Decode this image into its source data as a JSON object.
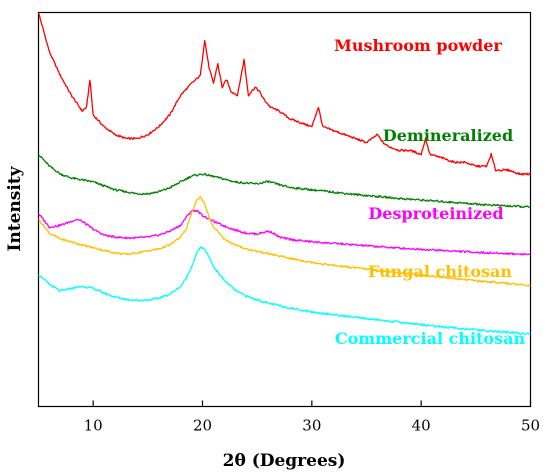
{
  "chart_data": {
    "type": "line",
    "title": "",
    "xlabel": "2θ (Degrees)",
    "ylabel": "Intensity",
    "xlim": [
      5,
      50
    ],
    "xticks": [
      10,
      20,
      30,
      40,
      50
    ],
    "y_ticks_shown": false,
    "grid": false,
    "legend": "labels placed next to each curve",
    "series": [
      {
        "name": "Mushroom powder",
        "color": "#ff0000",
        "points": [
          [
            5,
            1.0
          ],
          [
            6,
            0.9
          ],
          [
            7,
            0.84
          ],
          [
            8,
            0.79
          ],
          [
            9,
            0.75
          ],
          [
            9.4,
            0.76
          ],
          [
            9.7,
            0.83
          ],
          [
            10,
            0.74
          ],
          [
            11,
            0.71
          ],
          [
            12,
            0.69
          ],
          [
            13,
            0.68
          ],
          [
            14,
            0.68
          ],
          [
            15,
            0.69
          ],
          [
            16,
            0.71
          ],
          [
            17,
            0.74
          ],
          [
            18,
            0.79
          ],
          [
            19,
            0.82
          ],
          [
            19.8,
            0.84
          ],
          [
            20.2,
            0.93
          ],
          [
            20.6,
            0.86
          ],
          [
            21,
            0.82
          ],
          [
            21.4,
            0.87
          ],
          [
            21.8,
            0.81
          ],
          [
            22.2,
            0.83
          ],
          [
            22.6,
            0.8
          ],
          [
            23.2,
            0.79
          ],
          [
            23.8,
            0.88
          ],
          [
            24.2,
            0.79
          ],
          [
            24.8,
            0.81
          ],
          [
            25.2,
            0.8
          ],
          [
            25.6,
            0.78
          ],
          [
            26.2,
            0.76
          ],
          [
            27,
            0.75
          ],
          [
            28,
            0.73
          ],
          [
            29,
            0.72
          ],
          [
            30,
            0.71
          ],
          [
            30.6,
            0.76
          ],
          [
            31,
            0.71
          ],
          [
            32,
            0.7
          ],
          [
            33,
            0.69
          ],
          [
            34,
            0.68
          ],
          [
            35,
            0.67
          ],
          [
            36,
            0.69
          ],
          [
            36.5,
            0.67
          ],
          [
            37,
            0.66
          ],
          [
            38,
            0.65
          ],
          [
            39,
            0.65
          ],
          [
            40,
            0.64
          ],
          [
            40.4,
            0.68
          ],
          [
            40.8,
            0.64
          ],
          [
            42,
            0.63
          ],
          [
            43,
            0.62
          ],
          [
            44,
            0.62
          ],
          [
            45,
            0.61
          ],
          [
            46,
            0.61
          ],
          [
            46.4,
            0.64
          ],
          [
            46.8,
            0.6
          ],
          [
            48,
            0.6
          ],
          [
            49,
            0.59
          ],
          [
            50,
            0.59
          ]
        ]
      },
      {
        "name": "Demineralized",
        "color": "#008000",
        "points": [
          [
            5,
            0.64
          ],
          [
            6,
            0.61
          ],
          [
            7,
            0.59
          ],
          [
            8,
            0.58
          ],
          [
            9,
            0.575
          ],
          [
            10,
            0.57
          ],
          [
            11,
            0.56
          ],
          [
            12,
            0.55
          ],
          [
            13,
            0.545
          ],
          [
            14,
            0.54
          ],
          [
            15,
            0.54
          ],
          [
            16,
            0.545
          ],
          [
            17,
            0.555
          ],
          [
            18,
            0.57
          ],
          [
            19,
            0.585
          ],
          [
            20,
            0.59
          ],
          [
            20.5,
            0.587
          ],
          [
            21,
            0.584
          ],
          [
            22,
            0.577
          ],
          [
            23,
            0.57
          ],
          [
            24,
            0.567
          ],
          [
            25,
            0.565
          ],
          [
            26,
            0.571
          ],
          [
            27,
            0.563
          ],
          [
            28,
            0.556
          ],
          [
            30,
            0.55
          ],
          [
            32,
            0.544
          ],
          [
            34,
            0.538
          ],
          [
            36,
            0.533
          ],
          [
            38,
            0.528
          ],
          [
            40,
            0.524
          ],
          [
            42,
            0.52
          ],
          [
            44,
            0.516
          ],
          [
            46,
            0.512
          ],
          [
            48,
            0.509
          ],
          [
            50,
            0.506
          ]
        ]
      },
      {
        "name": "Desproteinized",
        "color": "#ff00ff",
        "points": [
          [
            5,
            0.49
          ],
          [
            6,
            0.455
          ],
          [
            7,
            0.46
          ],
          [
            8,
            0.47
          ],
          [
            8.5,
            0.475
          ],
          [
            9,
            0.47
          ],
          [
            10,
            0.45
          ],
          [
            11,
            0.435
          ],
          [
            12,
            0.43
          ],
          [
            13,
            0.428
          ],
          [
            14,
            0.428
          ],
          [
            15,
            0.43
          ],
          [
            16,
            0.435
          ],
          [
            17,
            0.445
          ],
          [
            18,
            0.46
          ],
          [
            18.5,
            0.48
          ],
          [
            19,
            0.497
          ],
          [
            19.5,
            0.497
          ],
          [
            20,
            0.485
          ],
          [
            21,
            0.47
          ],
          [
            22,
            0.458
          ],
          [
            23,
            0.448
          ],
          [
            24,
            0.44
          ],
          [
            25,
            0.438
          ],
          [
            26,
            0.445
          ],
          [
            26.5,
            0.44
          ],
          [
            27,
            0.43
          ],
          [
            28,
            0.424
          ],
          [
            30,
            0.418
          ],
          [
            32,
            0.414
          ],
          [
            34,
            0.41
          ],
          [
            36,
            0.406
          ],
          [
            38,
            0.402
          ],
          [
            40,
            0.399
          ],
          [
            42,
            0.396
          ],
          [
            44,
            0.393
          ],
          [
            46,
            0.39
          ],
          [
            48,
            0.388
          ],
          [
            50,
            0.386
          ]
        ]
      },
      {
        "name": "Fungal chitosan",
        "color": "#ffc000",
        "points": [
          [
            5,
            0.475
          ],
          [
            6,
            0.44
          ],
          [
            7,
            0.425
          ],
          [
            8,
            0.418
          ],
          [
            9,
            0.41
          ],
          [
            10,
            0.403
          ],
          [
            11,
            0.396
          ],
          [
            12,
            0.39
          ],
          [
            13,
            0.386
          ],
          [
            14,
            0.39
          ],
          [
            15,
            0.395
          ],
          [
            16,
            0.4
          ],
          [
            17,
            0.41
          ],
          [
            18,
            0.43
          ],
          [
            18.5,
            0.45
          ],
          [
            19,
            0.49
          ],
          [
            19.5,
            0.525
          ],
          [
            19.8,
            0.532
          ],
          [
            20.2,
            0.515
          ],
          [
            20.6,
            0.48
          ],
          [
            21,
            0.455
          ],
          [
            22,
            0.425
          ],
          [
            23,
            0.41
          ],
          [
            24,
            0.4
          ],
          [
            26,
            0.388
          ],
          [
            28,
            0.376
          ],
          [
            30,
            0.366
          ],
          [
            32,
            0.358
          ],
          [
            34,
            0.352
          ],
          [
            35,
            0.349
          ],
          [
            36,
            0.345
          ],
          [
            38,
            0.34
          ],
          [
            40,
            0.334
          ],
          [
            42,
            0.328
          ],
          [
            44,
            0.322
          ],
          [
            46,
            0.317
          ],
          [
            48,
            0.312
          ],
          [
            50,
            0.307
          ]
        ]
      },
      {
        "name": "Commercial chitosan",
        "color": "#00ffff",
        "points": [
          [
            5,
            0.335
          ],
          [
            6,
            0.31
          ],
          [
            7,
            0.293
          ],
          [
            8,
            0.3
          ],
          [
            9,
            0.305
          ],
          [
            10,
            0.3
          ],
          [
            11,
            0.288
          ],
          [
            12,
            0.278
          ],
          [
            13,
            0.272
          ],
          [
            14,
            0.27
          ],
          [
            15,
            0.27
          ],
          [
            16,
            0.275
          ],
          [
            17,
            0.285
          ],
          [
            18,
            0.305
          ],
          [
            18.5,
            0.325
          ],
          [
            19,
            0.355
          ],
          [
            19.5,
            0.39
          ],
          [
            19.8,
            0.405
          ],
          [
            20.2,
            0.398
          ],
          [
            20.6,
            0.38
          ],
          [
            21,
            0.355
          ],
          [
            22,
            0.32
          ],
          [
            23,
            0.295
          ],
          [
            24,
            0.28
          ],
          [
            26,
            0.262
          ],
          [
            28,
            0.25
          ],
          [
            30,
            0.24
          ],
          [
            32,
            0.233
          ],
          [
            34,
            0.226
          ],
          [
            36,
            0.22
          ],
          [
            38,
            0.214
          ],
          [
            40,
            0.208
          ],
          [
            42,
            0.202
          ],
          [
            44,
            0.197
          ],
          [
            46,
            0.192
          ],
          [
            48,
            0.188
          ],
          [
            50,
            0.184
          ]
        ]
      }
    ]
  }
}
